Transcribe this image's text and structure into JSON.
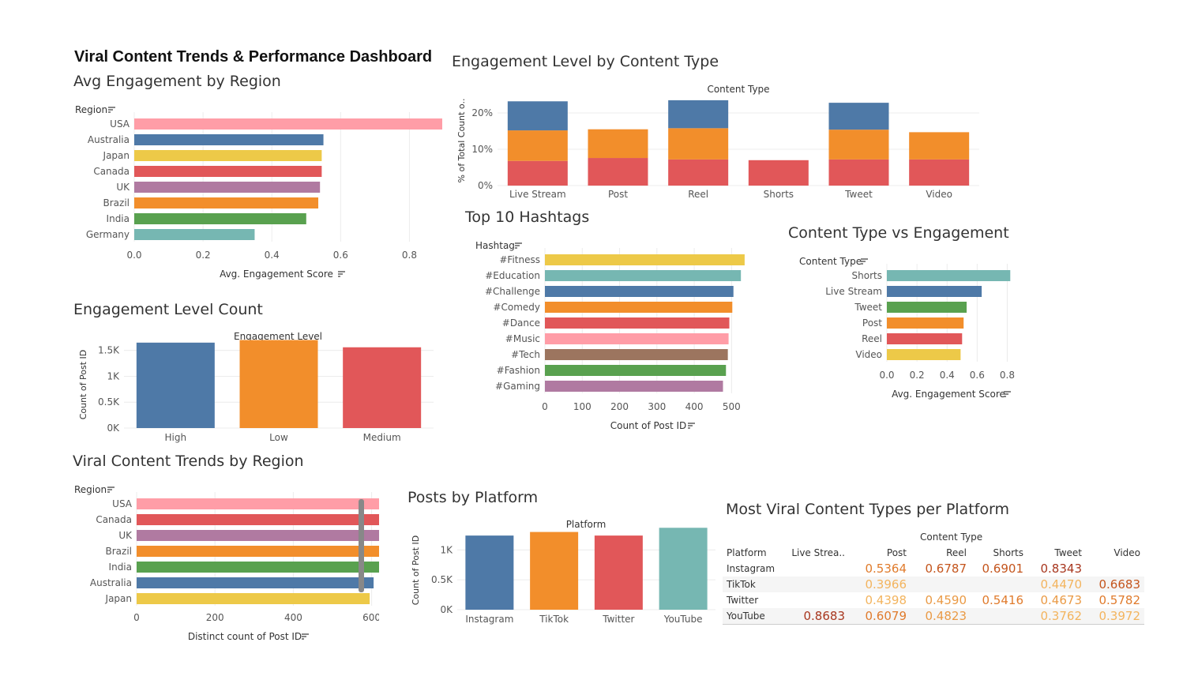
{
  "dashboard": {
    "title": "Viral Content Trends & Performance Dashboard"
  },
  "colors": {
    "blue": "#4e79a7",
    "orange": "#f28e2b",
    "red": "#e15759",
    "teal": "#76b7b2",
    "green": "#59a14f",
    "yellow": "#edc948",
    "purple": "#b07aa1",
    "pink": "#ff9da7",
    "brown": "#9c755f",
    "scrollbar": "#888888"
  },
  "sheets": {
    "avg_region": {
      "title": "Avg Engagement by Region",
      "header": "Region",
      "xlabel": "Avg. Engagement Score"
    },
    "level_by_type": {
      "title": "Engagement Level by Content Type",
      "header": "Content Type",
      "ylabel": "% of Total Count o.."
    },
    "level_count": {
      "title": "Engagement Level Count",
      "header": "Engagement Level",
      "ylabel": "Count of Post ID"
    },
    "viral_region": {
      "title": "Viral Content Trends by Region",
      "header": "Region",
      "xlabel": "Distinct count of Post ID"
    },
    "hashtags": {
      "title": "Top 10 Hashtags",
      "header": "Hashtag",
      "xlabel": "Count of Post ID"
    },
    "type_engagement": {
      "title": "Content Type vs Engagement",
      "header": "Content Type",
      "xlabel": "Avg. Engagement Score"
    },
    "posts_platform": {
      "title": "Posts by Platform",
      "header": "Platform",
      "ylabel": "Count of Post ID"
    },
    "viral_table": {
      "title": "Most Viral Content Types per Platform"
    }
  },
  "chart_data": [
    {
      "id": "avg_region",
      "type": "bar",
      "orientation": "horizontal",
      "title": "Avg Engagement by Region",
      "categories": [
        "USA",
        "Australia",
        "Japan",
        "Canada",
        "UK",
        "Brazil",
        "India",
        "Germany"
      ],
      "values": [
        0.91,
        0.55,
        0.545,
        0.545,
        0.54,
        0.535,
        0.5,
        0.35
      ],
      "colors": [
        "#ff9da7",
        "#4e79a7",
        "#edc948",
        "#e15759",
        "#b07aa1",
        "#f28e2b",
        "#59a14f",
        "#76b7b2"
      ],
      "xlabel": "Avg. Engagement Score",
      "xlim": [
        0,
        0.9
      ],
      "xticks": [
        "0.0",
        "0.2",
        "0.4",
        "0.6",
        "0.8"
      ],
      "xtick_values": [
        0,
        0.2,
        0.4,
        0.6,
        0.8
      ]
    },
    {
      "id": "level_by_type",
      "type": "bar",
      "stacked": true,
      "title": "Engagement Level by Content Type",
      "categories": [
        "Live Stream",
        "Post",
        "Reel",
        "Shorts",
        "Tweet",
        "Video"
      ],
      "series": [
        {
          "values": [
            6.8,
            7.6,
            7.2,
            7.0,
            7.2,
            7.2
          ],
          "color": "#e15759"
        },
        {
          "values": [
            8.4,
            7.9,
            8.6,
            0,
            8.2,
            7.5
          ],
          "color": "#f28e2b"
        },
        {
          "values": [
            8.0,
            0,
            7.7,
            0,
            7.4,
            0
          ],
          "color": "#4e79a7"
        }
      ],
      "ylabel": "% of Total Count o..",
      "ylim": [
        0,
        25
      ],
      "yticks": [
        "0%",
        "10%",
        "20%"
      ],
      "ytick_values": [
        0,
        10,
        20
      ]
    },
    {
      "id": "level_count",
      "type": "bar",
      "title": "Engagement Level Count",
      "categories": [
        "High",
        "Low",
        "Medium"
      ],
      "values": [
        1650,
        1700,
        1560
      ],
      "colors": [
        "#4e79a7",
        "#f28e2b",
        "#e15759"
      ],
      "ylabel": "Count of Post ID",
      "ylim": [
        0,
        1800
      ],
      "yticks": [
        "0K",
        "0.5K",
        "1K",
        "1.5K"
      ],
      "ytick_values": [
        0,
        500,
        1000,
        1500
      ]
    },
    {
      "id": "viral_region",
      "type": "bar",
      "orientation": "horizontal",
      "title": "Viral Content Trends by Region",
      "categories": [
        "USA",
        "Canada",
        "UK",
        "Brazil",
        "India",
        "Australia",
        "Japan"
      ],
      "values": [
        680,
        660,
        650,
        645,
        620,
        605,
        595
      ],
      "colors": [
        "#ff9da7",
        "#e15759",
        "#b07aa1",
        "#f28e2b",
        "#59a14f",
        "#4e79a7",
        "#edc948"
      ],
      "xlabel": "Distinct count of Post ID",
      "xlim": [
        0,
        750
      ],
      "xticks": [
        "0",
        "200",
        "400",
        "600"
      ],
      "xtick_values": [
        0,
        200,
        400,
        600
      ]
    },
    {
      "id": "hashtags",
      "type": "bar",
      "orientation": "horizontal",
      "title": "Top 10 Hashtags",
      "categories": [
        "#Fitness",
        "#Education",
        "#Challenge",
        "#Comedy",
        "#Dance",
        "#Music",
        "#Tech",
        "#Fashion",
        "#Gaming"
      ],
      "values": [
        535,
        525,
        505,
        502,
        494,
        492,
        490,
        485,
        477
      ],
      "colors": [
        "#edc948",
        "#76b7b2",
        "#4e79a7",
        "#f28e2b",
        "#e15759",
        "#ff9da7",
        "#9c755f",
        "#59a14f",
        "#b07aa1"
      ],
      "xlabel": "Count of Post ID",
      "xlim": [
        0,
        550
      ],
      "xticks": [
        "0",
        "100",
        "200",
        "300",
        "400",
        "500"
      ],
      "xtick_values": [
        0,
        100,
        200,
        300,
        400,
        500
      ]
    },
    {
      "id": "type_engagement",
      "type": "bar",
      "orientation": "horizontal",
      "title": "Content Type vs Engagement",
      "categories": [
        "Shorts",
        "Live Stream",
        "Tweet",
        "Post",
        "Reel",
        "Video"
      ],
      "values": [
        0.82,
        0.63,
        0.53,
        0.51,
        0.5,
        0.49
      ],
      "colors": [
        "#76b7b2",
        "#4e79a7",
        "#59a14f",
        "#f28e2b",
        "#e15759",
        "#edc948"
      ],
      "xlabel": "Avg. Engagement Score",
      "xlim": [
        0,
        0.85
      ],
      "xticks": [
        "0.0",
        "0.2",
        "0.4",
        "0.6",
        "0.8"
      ],
      "xtick_values": [
        0,
        0.2,
        0.4,
        0.6,
        0.8
      ]
    },
    {
      "id": "posts_platform",
      "type": "bar",
      "title": "Posts by Platform",
      "categories": [
        "Instagram",
        "TikTok",
        "Twitter",
        "YouTube"
      ],
      "values": [
        1240,
        1300,
        1240,
        1370
      ],
      "colors": [
        "#4e79a7",
        "#f28e2b",
        "#e15759",
        "#76b7b2"
      ],
      "ylabel": "Count of Post ID",
      "ylim": [
        0,
        1400
      ],
      "yticks": [
        "0K",
        "0.5K",
        "1K"
      ],
      "ytick_values": [
        0,
        500,
        1000
      ]
    },
    {
      "id": "viral_table",
      "type": "table",
      "title": "Most Viral Content Types per Platform",
      "column_group": "Content Type",
      "columns": [
        "Platform",
        "Live Strea..",
        "Post",
        "Reel",
        "Shorts",
        "Tweet",
        "Video"
      ],
      "rows": [
        [
          "Instagram",
          "",
          "0.5364",
          "0.6787",
          "0.6901",
          "0.8343",
          ""
        ],
        [
          "TikTok",
          "",
          "0.3966",
          "",
          "",
          "0.4470",
          "0.6683"
        ],
        [
          "Twitter",
          "",
          "0.4398",
          "0.4590",
          "0.5416",
          "0.4673",
          "0.5782"
        ],
        [
          "YouTube",
          "0.8683",
          "0.6079",
          "0.4823",
          "",
          "0.3762",
          "0.3972"
        ]
      ]
    }
  ]
}
